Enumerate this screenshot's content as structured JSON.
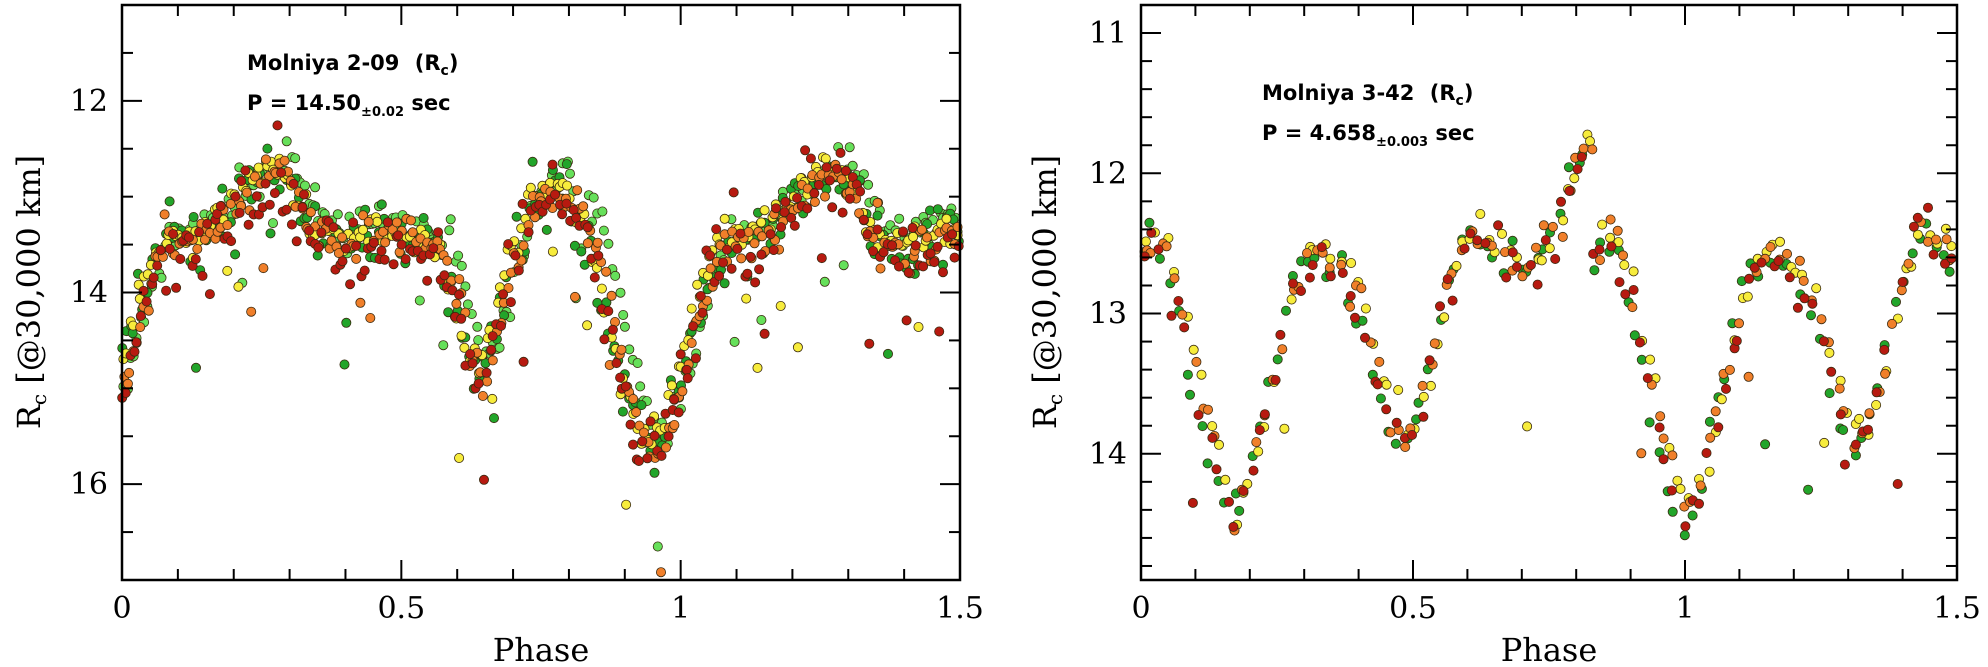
{
  "chart_data": [
    {
      "type": "scatter",
      "title": "",
      "annotation": {
        "name": "Molniya 2-09",
        "band_open": "(R",
        "band_sub": "c",
        "band_close": ")",
        "period_prefix": "P = ",
        "period_value": "14.50",
        "period_error": "±0.02",
        "period_unit": " sec"
      },
      "xlabel": "Phase",
      "ylabel_main": "R",
      "ylabel_sub": "c",
      "ylabel_rest": " [@30,000 km]",
      "xlim": [
        0,
        1.5
      ],
      "ylim": [
        17.0,
        11.0
      ],
      "y_inverted": true,
      "xticks": [
        0,
        0.5,
        1,
        1.5
      ],
      "xtick_labels": [
        "0",
        "0.5",
        "1",
        "1.5"
      ],
      "yticks": [
        12,
        14,
        16
      ],
      "ytick_labels": [
        "12",
        "14",
        "16"
      ],
      "period": 1.0,
      "grid": false,
      "series": [
        {
          "color": "#66e05a",
          "phase_offset": -0.012,
          "wave_offset": -0.12,
          "jitter": 0.1,
          "seed": 11
        },
        {
          "color": "#22a52a",
          "phase_offset": 0.01,
          "wave_offset": 0.04,
          "jitter": 0.16,
          "seed": 23
        },
        {
          "color": "#f7ec3c",
          "phase_offset": 0.012,
          "wave_offset": -0.02,
          "jitter": 0.09,
          "seed": 37
        },
        {
          "color": "#f07f2a",
          "phase_offset": 0.0,
          "wave_offset": 0.05,
          "jitter": 0.11,
          "seed": 41
        },
        {
          "color": "#b71a10",
          "phase_offset": 0.006,
          "wave_offset": 0.12,
          "jitter": 0.18,
          "seed": 53
        }
      ],
      "template": {
        "phase": [
          0.0,
          0.02,
          0.04,
          0.06,
          0.08,
          0.1,
          0.15,
          0.2,
          0.25,
          0.27,
          0.285,
          0.3,
          0.33,
          0.36,
          0.4,
          0.45,
          0.5,
          0.55,
          0.58,
          0.6,
          0.62,
          0.64,
          0.66,
          0.68,
          0.7,
          0.74,
          0.77,
          0.8,
          0.82,
          0.85,
          0.88,
          0.9,
          0.92,
          0.94,
          0.96,
          0.98,
          1.0
        ],
        "mag": [
          15.0,
          14.6,
          14.1,
          13.7,
          13.5,
          13.45,
          13.4,
          13.1,
          12.8,
          12.7,
          12.65,
          12.8,
          13.1,
          13.4,
          13.5,
          13.4,
          13.4,
          13.45,
          13.6,
          14.0,
          14.5,
          14.8,
          14.7,
          14.2,
          13.7,
          13.1,
          12.9,
          12.9,
          13.1,
          13.5,
          14.2,
          14.8,
          15.2,
          15.5,
          15.6,
          15.4,
          15.0
        ]
      },
      "points_per_series": 240
    },
    {
      "type": "scatter",
      "title": "",
      "annotation": {
        "name": "Molniya 3-42",
        "band_open": "(R",
        "band_sub": "c",
        "band_close": ")",
        "period_prefix": "P = ",
        "period_value": "4.658",
        "period_error": "±0.003",
        "period_unit": " sec"
      },
      "xlabel": "Phase",
      "ylabel_main": "R",
      "ylabel_sub": "c",
      "ylabel_rest": " [@30,000 km]",
      "xlim": [
        0,
        1.5
      ],
      "ylim": [
        14.9,
        10.8
      ],
      "y_inverted": true,
      "xticks": [
        0,
        0.5,
        1,
        1.5
      ],
      "xtick_labels": [
        "0",
        "0.5",
        "1",
        "1.5"
      ],
      "yticks": [
        11,
        12,
        13,
        14
      ],
      "ytick_labels": [
        "11",
        "12",
        "13",
        "14"
      ],
      "period": 0.8333,
      "grid": false,
      "series": [
        {
          "color": "#22a52a",
          "phase_offset": 0.008,
          "wave_offset": 0.06,
          "jitter": 0.08,
          "seed": 61
        },
        {
          "color": "#f7ec3c",
          "phase_offset": -0.005,
          "wave_offset": -0.03,
          "jitter": 0.06,
          "seed": 73
        },
        {
          "color": "#f07f2a",
          "phase_offset": 0.0,
          "wave_offset": 0.0,
          "jitter": 0.07,
          "seed": 89
        },
        {
          "color": "#b71a10",
          "phase_offset": 0.004,
          "wave_offset": 0.05,
          "jitter": 0.09,
          "seed": 97
        }
      ],
      "template": {
        "phase": [
          0.0,
          0.03,
          0.06,
          0.1,
          0.14,
          0.17,
          0.2,
          0.24,
          0.28,
          0.32,
          0.36,
          0.4,
          0.43,
          0.46,
          0.49,
          0.52,
          0.56,
          0.6,
          0.64,
          0.68,
          0.72,
          0.76,
          0.79,
          0.81,
          0.833
        ],
        "mag": [
          12.5,
          12.4,
          12.7,
          13.4,
          14.1,
          14.45,
          14.2,
          13.5,
          12.8,
          12.55,
          12.65,
          12.85,
          13.3,
          13.75,
          13.95,
          13.6,
          12.9,
          12.4,
          12.45,
          12.6,
          12.65,
          12.4,
          12.1,
          11.8,
          11.7
        ]
      },
      "points_per_series": 100
    }
  ]
}
